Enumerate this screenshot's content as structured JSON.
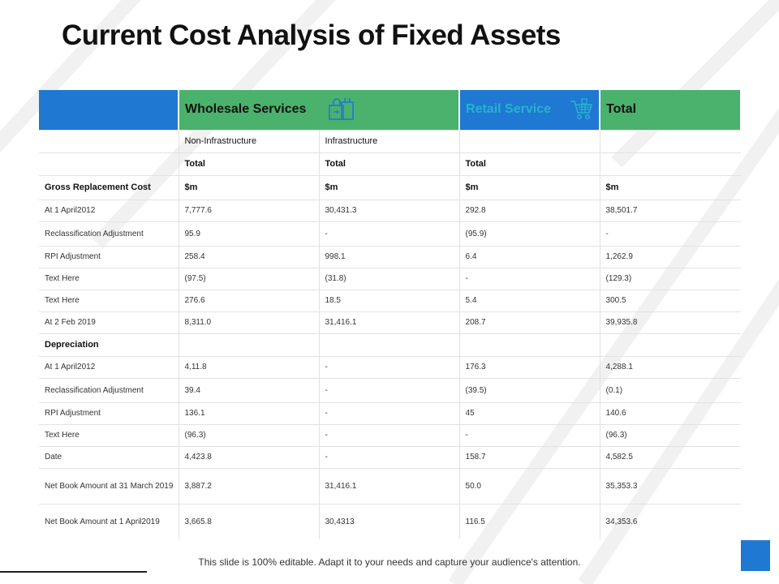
{
  "title": "Current Cost Analysis of Fixed Assets",
  "header": {
    "col0": "",
    "wholesale": "Wholesale Services",
    "retail": "Retail Service",
    "total": "Total"
  },
  "icons": {
    "wholesale": "shopping-bags-icon",
    "retail": "shopping-cart-icon"
  },
  "colors": {
    "blue": "#1f78d1",
    "green": "#4ab26d",
    "retail_text": "#27b3cf"
  },
  "rows": [
    {
      "label": "",
      "c1": "Non-Infrastructure",
      "c2": "Infrastructure",
      "c3": "",
      "c4": ""
    },
    {
      "label": "",
      "c1": "Total",
      "c2": "Total",
      "c3": "Total",
      "c4": ""
    },
    {
      "label": "Gross Replacement Cost",
      "c1": "$m",
      "c2": "$m",
      "c3": "$m",
      "c4": "$m"
    },
    {
      "label": "At 1 April2012",
      "c1": "7,777.6",
      "c2": "30,431.3",
      "c3": "292.8",
      "c4": "38,501.7"
    },
    {
      "label": "Reclassification Adjustment",
      "c1": "95.9",
      "c2": "-",
      "c3": "(95.9)",
      "c4": "-"
    },
    {
      "label": "RPI  Adjustment",
      "c1": "258.4",
      "c2": "998.1",
      "c3": "6.4",
      "c4": "1,262.9"
    },
    {
      "label": "Text Here",
      "c1": "(97.5)",
      "c2": "(31.8)",
      "c3": "-",
      "c4": "(129.3)"
    },
    {
      "label": "Text Here",
      "c1": "276.6",
      "c2": "18.5",
      "c3": "5.4",
      "c4": "300.5"
    },
    {
      "label": "At 2 Feb 2019",
      "c1": "8,311.0",
      "c2": "31,416.1",
      "c3": "208.7",
      "c4": "39,935.8"
    },
    {
      "label": "Depreciation",
      "c1": "",
      "c2": "",
      "c3": "",
      "c4": ""
    },
    {
      "label": "At 1 April2012",
      "c1": "4,11.8",
      "c2": "-",
      "c3": "176.3",
      "c4": "4,288.1"
    },
    {
      "label": "Reclassification Adjustment",
      "c1": "39.4",
      "c2": "-",
      "c3": "(39.5)",
      "c4": "(0.1)"
    },
    {
      "label": "RPI  Adjustment",
      "c1": "136.1",
      "c2": "-",
      "c3": "45",
      "c4": "140.6"
    },
    {
      "label": "Text Here",
      "c1": "(96.3)",
      "c2": "-",
      "c3": "-",
      "c4": "(96.3)"
    },
    {
      "label": "Date",
      "c1": "4,423.8",
      "c2": "-",
      "c3": "158.7",
      "c4": "4,582.5"
    },
    {
      "label": "Net Book Amount at 31 March 2019",
      "c1": "3,887.2",
      "c2": "31,416.1",
      "c3": "50.0",
      "c4": "35,353.3"
    },
    {
      "label": "Net Book Amount at 1 April2019",
      "c1": "3,665.8",
      "c2": "30,4313",
      "c3": "116.5",
      "c4": "34,353.6"
    }
  ],
  "footer": "This slide is 100% editable. Adapt it to your needs and capture your audience's attention."
}
